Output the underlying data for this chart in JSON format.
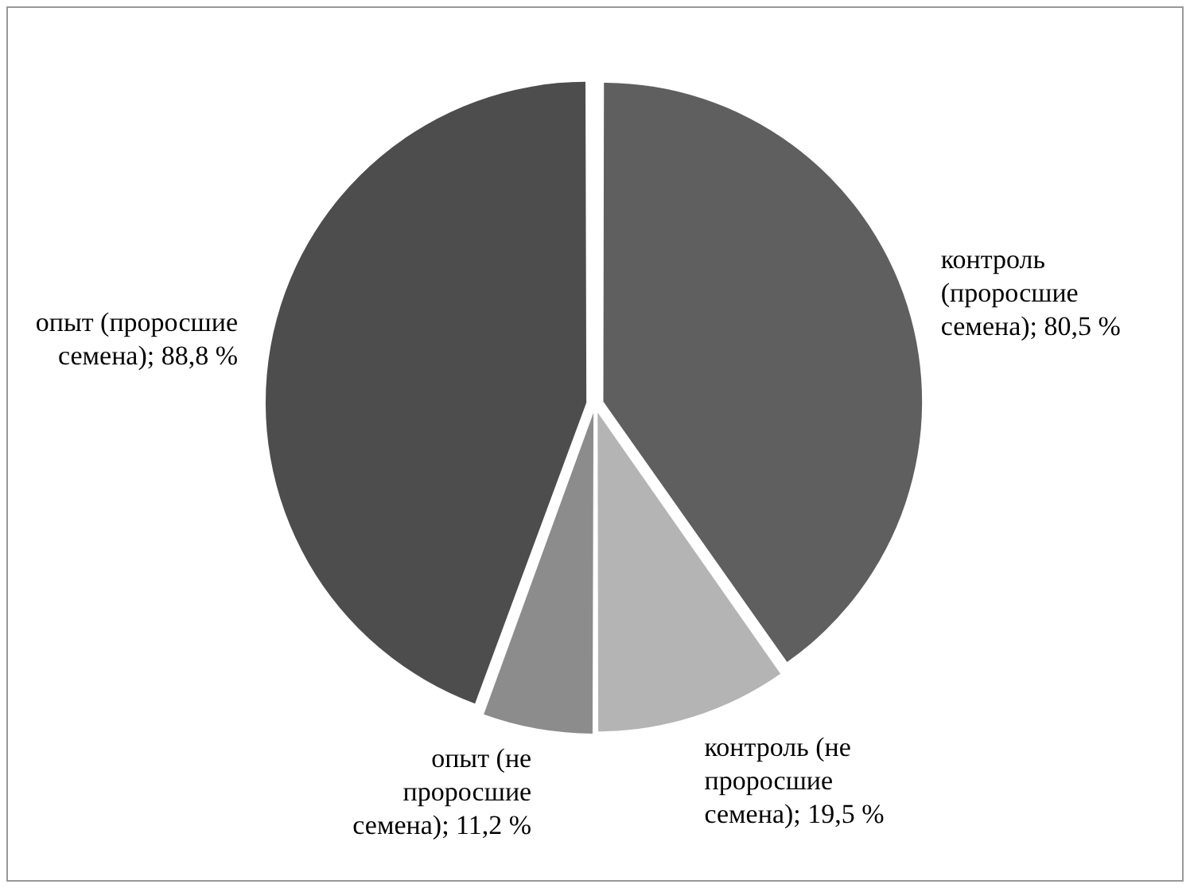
{
  "chart_data": {
    "type": "pie",
    "categories": [
      "контроль (проросшие семена)",
      "контроль (не проросшие семена)",
      "опыт (не проросшие семена)",
      "опыт (проросшие семена)"
    ],
    "values": [
      80.5,
      19.5,
      11.2,
      88.8
    ],
    "value_labels": [
      "80,5 %",
      "19,5 %",
      "11,2 %",
      "88,8 %"
    ],
    "colors": [
      "#5f5f5f",
      "#b4b4b4",
      "#8c8c8c",
      "#4d4d4d"
    ],
    "legend": false
  }
}
